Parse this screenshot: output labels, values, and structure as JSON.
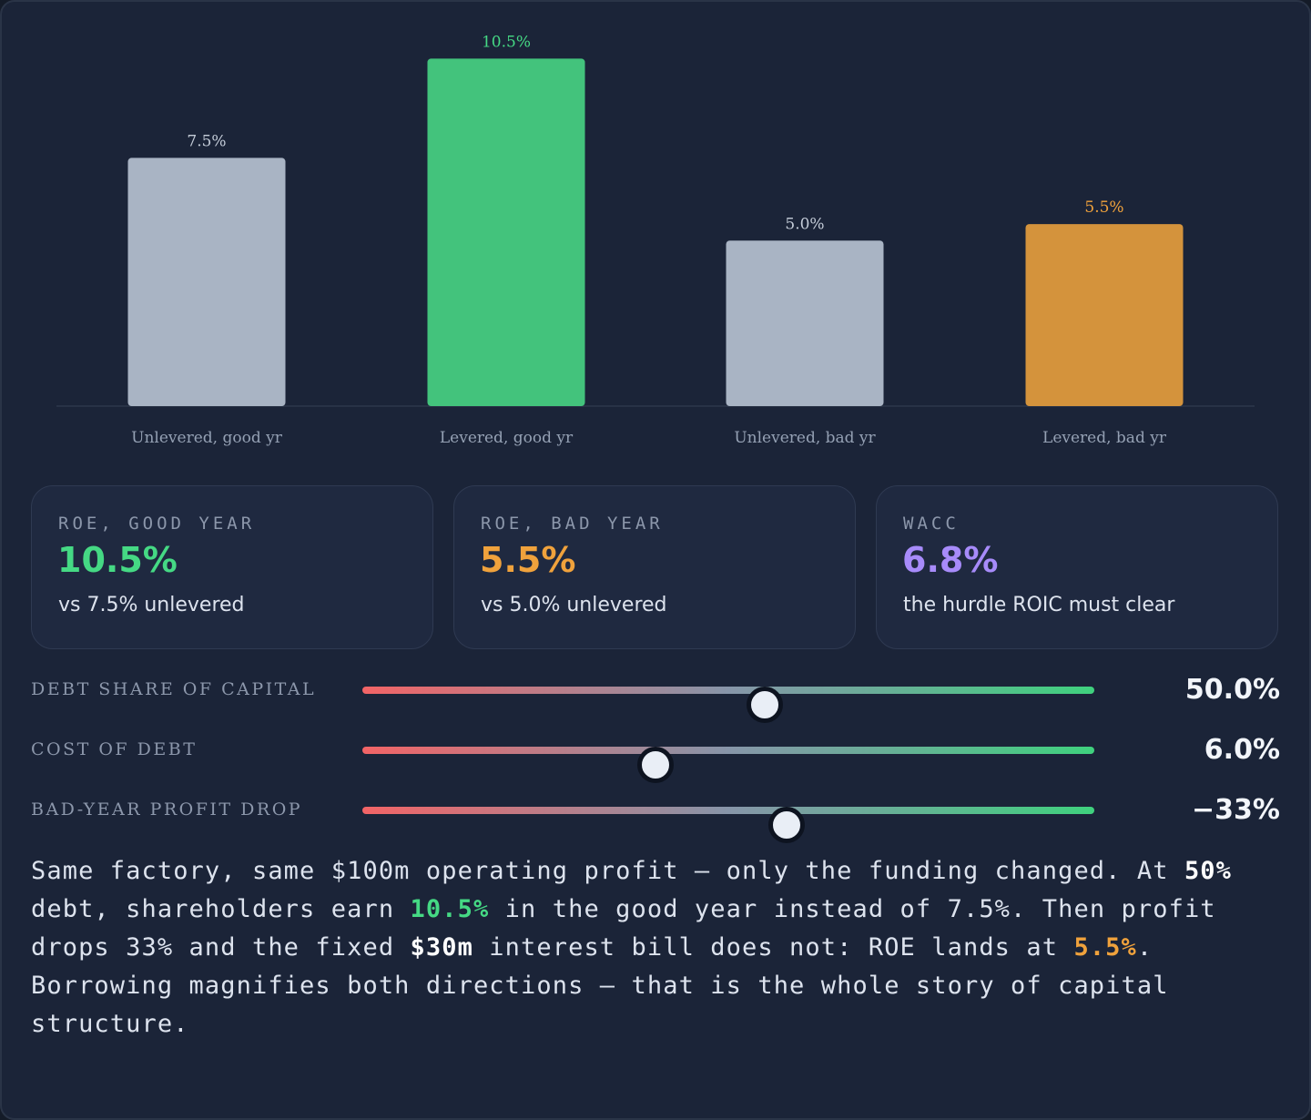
{
  "colors": {
    "panel_bg": "#1b2438",
    "neutral_bar": "#a9b4c4",
    "good": "#43c37c",
    "bad": "#d4933c",
    "accent_green": "#45d984",
    "accent_orange": "#f0a23c",
    "accent_purple": "#a78bfa"
  },
  "chart_data": {
    "type": "bar",
    "categories": [
      "Unlevered, good yr",
      "Levered, good yr",
      "Unlevered, bad yr",
      "Levered, bad yr"
    ],
    "values": [
      7.5,
      10.5,
      5.0,
      5.5
    ],
    "value_labels": [
      "7.5%",
      "10.5%",
      "5.0%",
      "5.5%"
    ],
    "bar_colors": [
      "#a9b4c4",
      "#43c37c",
      "#a9b4c4",
      "#d4933c"
    ],
    "label_colors": [
      "#c4ccd8",
      "#45d984",
      "#c4ccd8",
      "#f0a23c"
    ],
    "ylim": [
      0,
      11.5
    ],
    "grid": false,
    "legend": "none"
  },
  "cards": [
    {
      "label": "ROE, GOOD YEAR",
      "value": "10.5%",
      "sub": "vs 7.5% unlevered",
      "color": "#45d984"
    },
    {
      "label": "ROE, BAD YEAR",
      "value": "5.5%",
      "sub": "vs 5.0% unlevered",
      "color": "#f0a23c"
    },
    {
      "label": "WACC",
      "value": "6.8%",
      "sub": "the hurdle ROIC must clear",
      "color": "#a78bfa"
    }
  ],
  "sliders": [
    {
      "label": "DEBT SHARE OF CAPITAL",
      "value_text": "50.0%",
      "position": 0.55
    },
    {
      "label": "COST OF DEBT",
      "value_text": "6.0%",
      "position": 0.4
    },
    {
      "label": "BAD-YEAR PROFIT DROP",
      "value_text": "−33%",
      "position": 0.58
    }
  ],
  "summary": {
    "p1": "Same factory, same $100m operating profit — only the funding changed. At ",
    "debt": "50%",
    "p2": " debt, shareholders earn ",
    "roe_good": "10.5%",
    "p3": " in the good year instead of 7.5%. Then profit drops 33% and the fixed ",
    "interest": "$30m",
    "p4": " interest bill does not: ROE lands at ",
    "roe_bad": "5.5%",
    "p5": ". Borrowing magnifies both directions — that is the whole story of capital structure."
  }
}
